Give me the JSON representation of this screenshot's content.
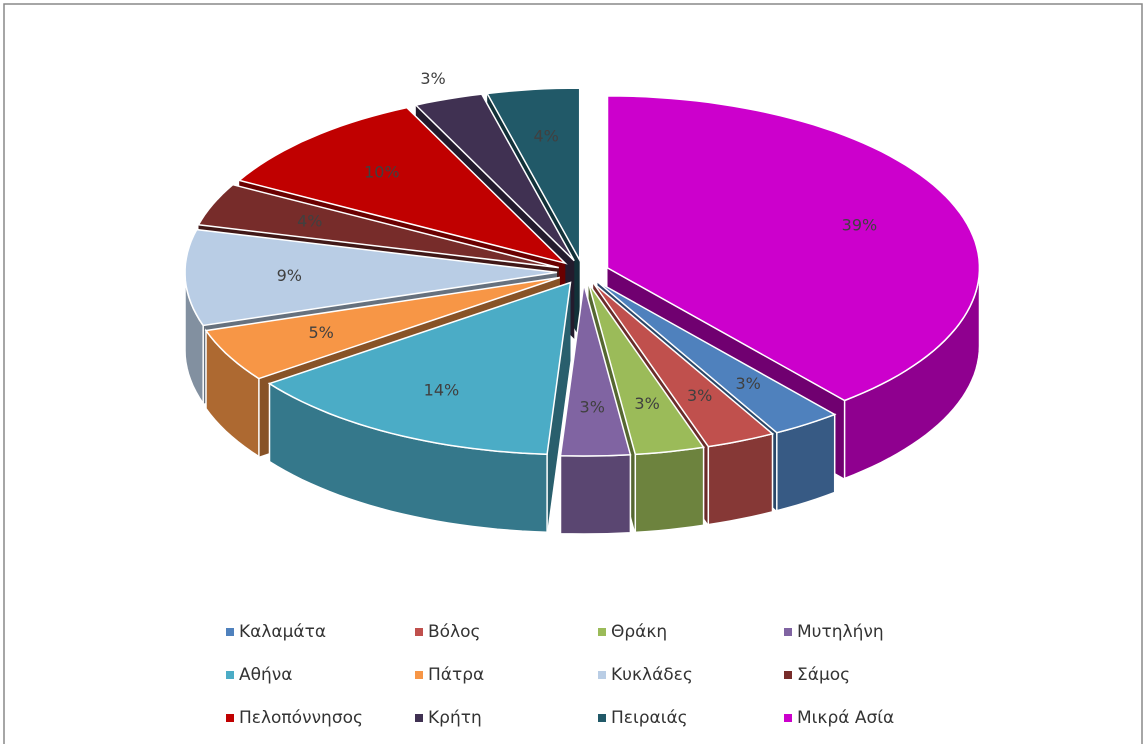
{
  "chart_data": {
    "type": "pie",
    "categories": [
      "Καλαμάτα",
      "Βόλος",
      "Θράκη",
      "Μυτηλήνη",
      "Αθήνα",
      "Πάτρα",
      "Κυκλάδες",
      "Σάμος",
      "Πελοπόννησος",
      "Κρήτη",
      "Πειραιάς",
      "Μικρά Ασία"
    ],
    "values": [
      3,
      3,
      3,
      3,
      14,
      5,
      9,
      4,
      10,
      3,
      4,
      39
    ],
    "value_labels": [
      "3%",
      "3%",
      "3%",
      "3%",
      "14%",
      "5%",
      "9%",
      "4%",
      "10%",
      "3%",
      "4%",
      "39%"
    ],
    "colors": [
      "#4f81bd",
      "#c0504d",
      "#9bbb59",
      "#8064a2",
      "#4bacc6",
      "#f79646",
      "#b9cde5",
      "#772c2a",
      "#c00000",
      "#403152",
      "#215968",
      "#cc00cc"
    ],
    "legend": "bottom"
  }
}
